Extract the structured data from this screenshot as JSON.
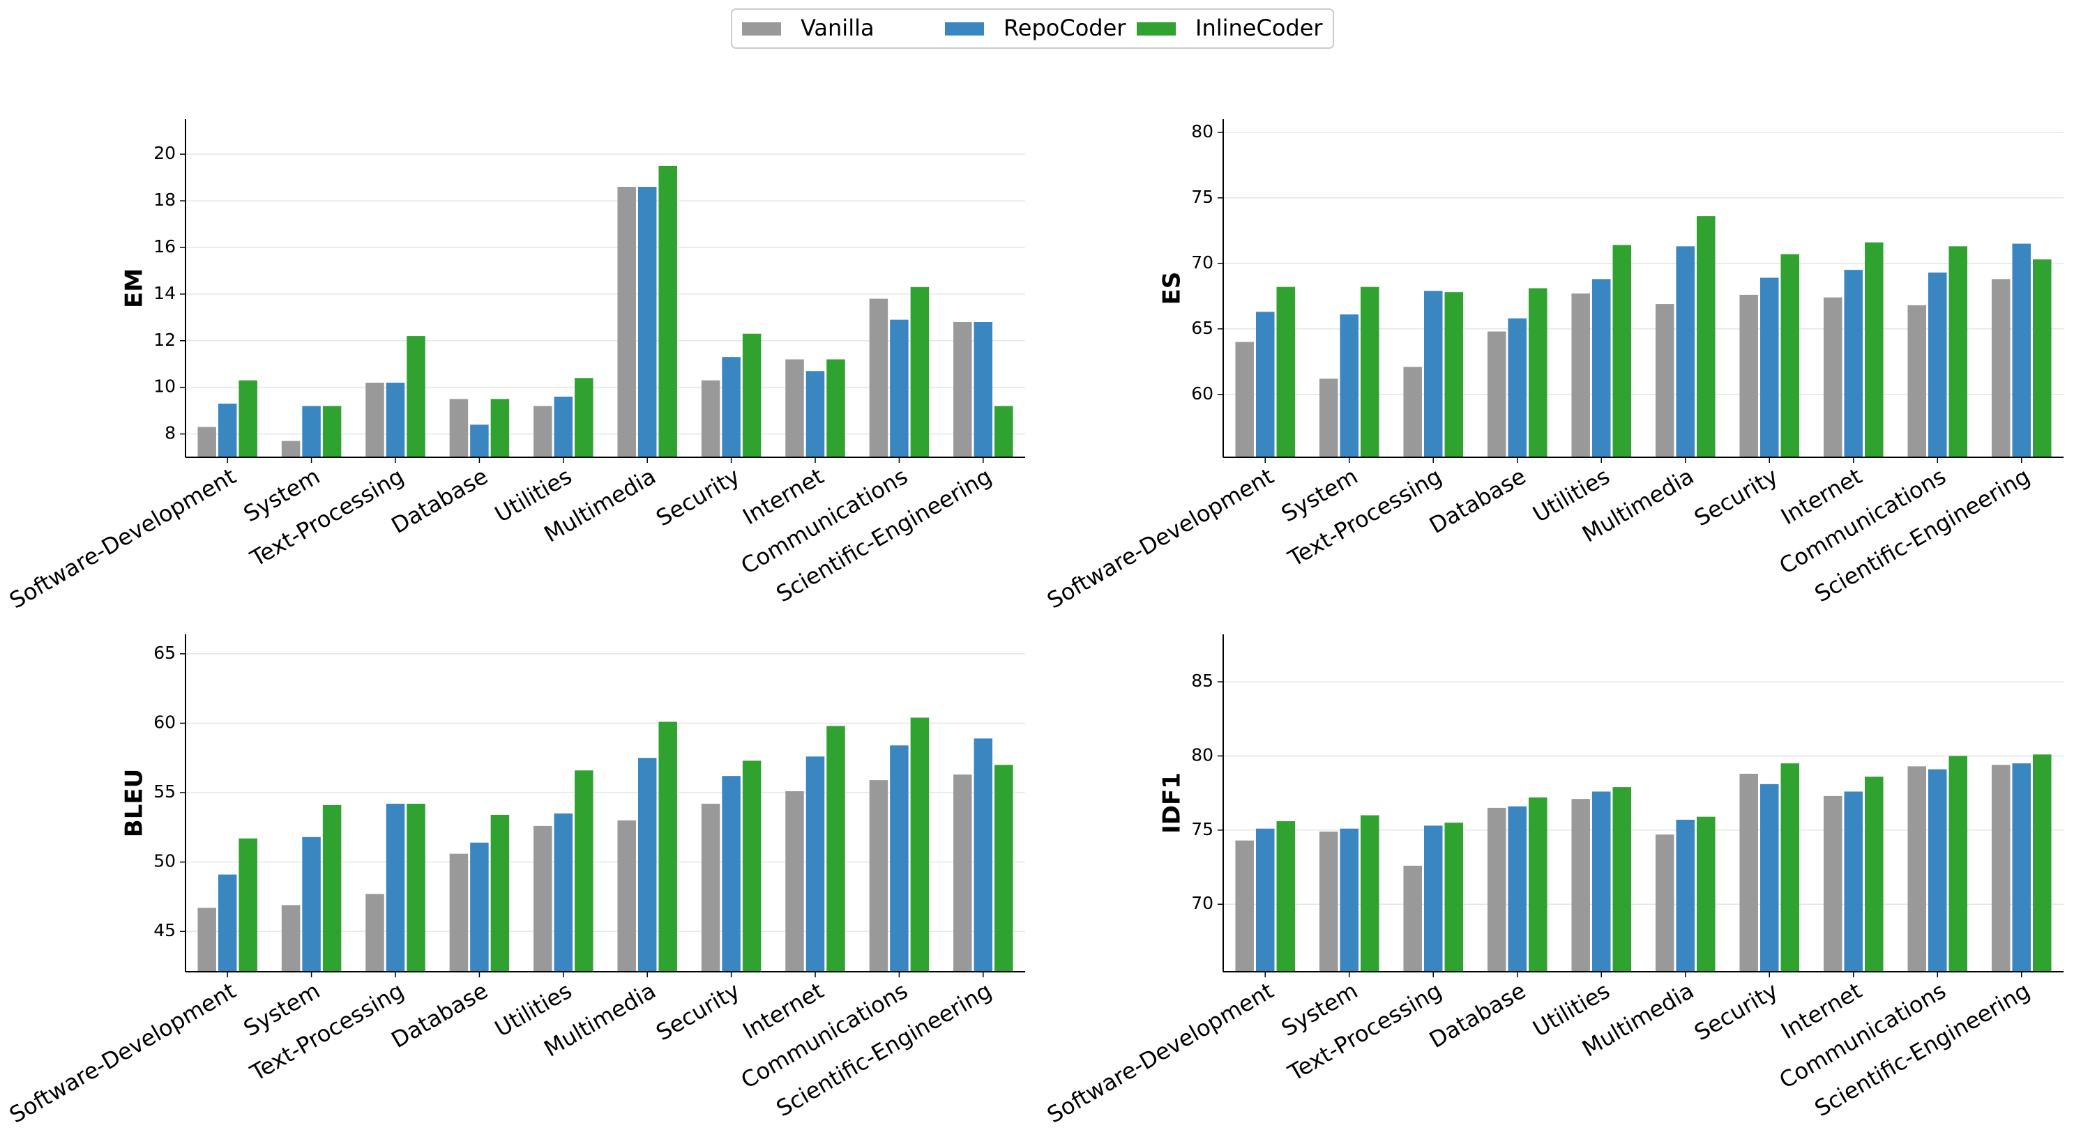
{
  "chart_data": [
    {
      "type": "bar",
      "ylabel": "EM",
      "categories": [
        "Software-Development",
        "System",
        "Text-Processing",
        "Database",
        "Utilities",
        "Multimedia",
        "Security",
        "Internet",
        "Communications",
        "Scientific-Engineering"
      ],
      "series": [
        {
          "name": "Vanilla",
          "color": "#999999",
          "values": [
            8.3,
            7.7,
            10.2,
            9.5,
            9.2,
            18.6,
            10.3,
            11.2,
            13.8,
            12.8
          ]
        },
        {
          "name": "RepoCoder",
          "color": "#3a86c1",
          "values": [
            9.3,
            9.2,
            10.2,
            8.4,
            9.6,
            18.6,
            11.3,
            10.7,
            12.9,
            12.8
          ]
        },
        {
          "name": "InlineCoder",
          "color": "#2fa22f",
          "values": [
            10.3,
            9.2,
            12.2,
            9.5,
            10.4,
            19.5,
            12.3,
            11.2,
            14.3,
            9.2
          ]
        }
      ],
      "ylim": [
        7,
        21.5
      ],
      "yticks": [
        8,
        10,
        12,
        14,
        16,
        18,
        20
      ],
      "grid": true
    },
    {
      "type": "bar",
      "ylabel": "ES",
      "categories": [
        "Software-Development",
        "System",
        "Text-Processing",
        "Database",
        "Utilities",
        "Multimedia",
        "Security",
        "Internet",
        "Communications",
        "Scientific-Engineering"
      ],
      "series": [
        {
          "name": "Vanilla",
          "color": "#999999",
          "values": [
            64,
            61.2,
            62.1,
            64.8,
            67.7,
            66.9,
            67.6,
            67.4,
            66.8,
            68.8
          ]
        },
        {
          "name": "RepoCoder",
          "color": "#3a86c1",
          "values": [
            66.3,
            66.1,
            67.9,
            65.8,
            68.8,
            71.3,
            68.9,
            69.5,
            69.3,
            71.5
          ]
        },
        {
          "name": "InlineCoder",
          "color": "#2fa22f",
          "values": [
            68.2,
            68.2,
            67.8,
            68.1,
            71.4,
            73.6,
            70.7,
            71.6,
            71.3,
            70.3
          ]
        }
      ],
      "ylim": [
        55.2,
        81
      ],
      "yticks": [
        60,
        65,
        70,
        75,
        80
      ],
      "grid": true
    },
    {
      "type": "bar",
      "ylabel": "BLEU",
      "categories": [
        "Software-Development",
        "System",
        "Text-Processing",
        "Database",
        "Utilities",
        "Multimedia",
        "Security",
        "Internet",
        "Communications",
        "Scientific-Engineering"
      ],
      "series": [
        {
          "name": "Vanilla",
          "color": "#999999",
          "values": [
            46.7,
            46.9,
            47.7,
            50.6,
            52.6,
            53,
            54.2,
            55.1,
            55.9,
            56.3
          ]
        },
        {
          "name": "RepoCoder",
          "color": "#3a86c1",
          "values": [
            49.1,
            51.8,
            54.2,
            51.4,
            53.5,
            57.5,
            56.2,
            57.6,
            58.4,
            58.9
          ]
        },
        {
          "name": "InlineCoder",
          "color": "#2fa22f",
          "values": [
            51.7,
            54.1,
            54.2,
            53.4,
            56.6,
            60.1,
            57.3,
            59.8,
            60.4,
            57
          ]
        }
      ],
      "ylim": [
        42.1,
        66.4
      ],
      "yticks": [
        45,
        50,
        55,
        60,
        65
      ],
      "grid": true
    },
    {
      "type": "bar",
      "ylabel": "IDF1",
      "categories": [
        "Software-Development",
        "System",
        "Text-Processing",
        "Database",
        "Utilities",
        "Multimedia",
        "Security",
        "Internet",
        "Communications",
        "Scientific-Engineering"
      ],
      "series": [
        {
          "name": "Vanilla",
          "color": "#999999",
          "values": [
            74.3,
            74.9,
            72.6,
            76.5,
            77.1,
            74.7,
            78.8,
            77.3,
            79.3,
            79.4
          ]
        },
        {
          "name": "RepoCoder",
          "color": "#3a86c1",
          "values": [
            75.1,
            75.1,
            75.3,
            76.6,
            77.6,
            75.7,
            78.1,
            77.6,
            79.1,
            79.5
          ]
        },
        {
          "name": "InlineCoder",
          "color": "#2fa22f",
          "values": [
            75.6,
            76,
            75.5,
            77.2,
            77.9,
            75.9,
            79.5,
            78.6,
            80,
            80.1
          ]
        }
      ],
      "ylim": [
        65.45,
        88.2
      ],
      "yticks": [
        70,
        75,
        80,
        85
      ],
      "grid": true
    }
  ]
}
